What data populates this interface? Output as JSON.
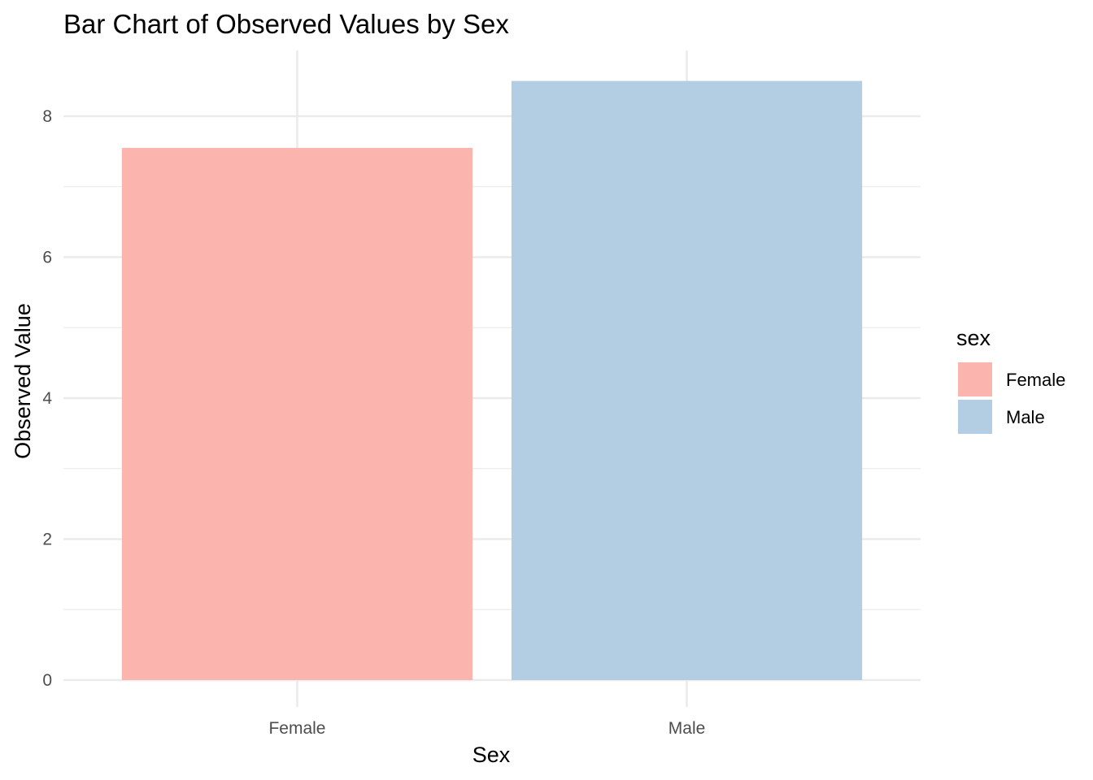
{
  "chart_data": {
    "type": "bar",
    "title": "Bar Chart of Observed Values by Sex",
    "xlabel": "Sex",
    "ylabel": "Observed Value",
    "categories": [
      "Female",
      "Male"
    ],
    "values": [
      7.55,
      8.5
    ],
    "colors": [
      "#fbb4ae",
      "#b3cde3"
    ],
    "ylim": [
      0,
      8.9
    ],
    "yticks": [
      0,
      2,
      4,
      6,
      8
    ],
    "grid": true,
    "legend": {
      "title": "sex",
      "placement": "right",
      "entries": [
        "Female",
        "Male"
      ]
    }
  }
}
